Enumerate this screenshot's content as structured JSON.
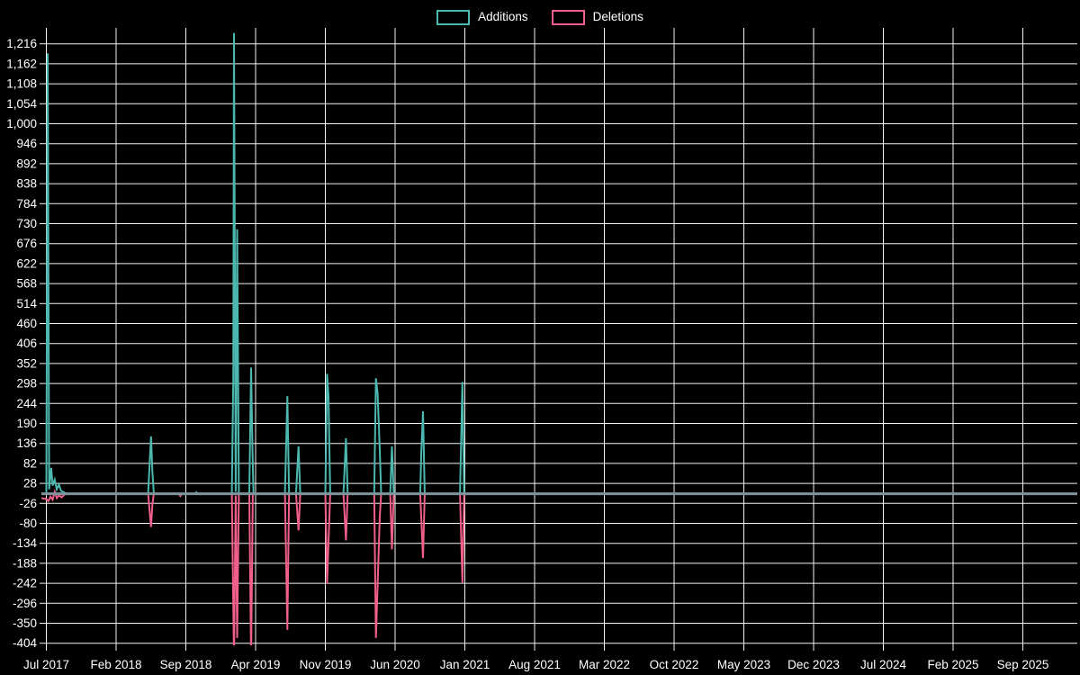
{
  "page": {
    "background_color": "#000000",
    "text_color": "#ffffff",
    "grid_color": "#f2f2f2",
    "zero_line_color": "#7f949c"
  },
  "legend": {
    "items": [
      {
        "label": "Additions",
        "color": "#4cb8af"
      },
      {
        "label": "Deletions",
        "color": "#f0608a"
      }
    ]
  },
  "chart_data": {
    "type": "line",
    "title": "",
    "xlabel": "",
    "ylabel": "",
    "legend_position": "top-center",
    "grid": true,
    "x_unit_note": "x values are in tick units: 0 = Jul 2017 tick, each tick = 7 months",
    "x_ticks": [
      "Jul 2017",
      "Feb 2018",
      "Sep 2018",
      "Apr 2019",
      "Nov 2019",
      "Jun 2020",
      "Jan 2021",
      "Aug 2021",
      "Mar 2022",
      "Oct 2022",
      "May 2023",
      "Dec 2023",
      "Jul 2024",
      "Feb 2025",
      "Sep 2025"
    ],
    "y_ticks": [
      "1,216",
      "1,162",
      "1,108",
      "1,054",
      "1,000",
      "946",
      "892",
      "838",
      "784",
      "730",
      "676",
      "622",
      "568",
      "514",
      "460",
      "406",
      "352",
      "298",
      "244",
      "190",
      "136",
      "82",
      "28",
      "-26",
      "-80",
      "-134",
      "-188",
      "-242",
      "-296",
      "-350",
      "-404"
    ],
    "ylim": [
      -410,
      1255
    ],
    "series": [
      {
        "name": "Additions",
        "color": "#4cb8af",
        "points": [
          [
            -0.07,
            0
          ],
          [
            0.0,
            0
          ],
          [
            0.02,
            1190
          ],
          [
            0.04,
            12
          ],
          [
            0.07,
            70
          ],
          [
            0.09,
            22
          ],
          [
            0.12,
            38
          ],
          [
            0.15,
            12
          ],
          [
            0.18,
            25
          ],
          [
            0.21,
            8
          ],
          [
            0.26,
            3
          ],
          [
            0.3,
            0
          ],
          [
            1.46,
            0
          ],
          [
            1.5,
            155
          ],
          [
            1.52,
            60
          ],
          [
            1.54,
            0
          ],
          [
            2.13,
            0
          ],
          [
            2.15,
            4
          ],
          [
            2.17,
            0
          ],
          [
            2.66,
            0
          ],
          [
            2.68,
            310
          ],
          [
            2.69,
            1245
          ],
          [
            2.715,
            5
          ],
          [
            2.735,
            715
          ],
          [
            2.76,
            0
          ],
          [
            2.91,
            0
          ],
          [
            2.935,
            341
          ],
          [
            2.955,
            120
          ],
          [
            2.97,
            0
          ],
          [
            3.42,
            0
          ],
          [
            3.455,
            264
          ],
          [
            3.48,
            0
          ],
          [
            3.58,
            0
          ],
          [
            3.615,
            128
          ],
          [
            3.64,
            0
          ],
          [
            4.0,
            0
          ],
          [
            4.025,
            324
          ],
          [
            4.045,
            264
          ],
          [
            4.07,
            0
          ],
          [
            4.26,
            0
          ],
          [
            4.295,
            150
          ],
          [
            4.32,
            0
          ],
          [
            4.7,
            0
          ],
          [
            4.725,
            312
          ],
          [
            4.75,
            270
          ],
          [
            4.78,
            116
          ],
          [
            4.8,
            0
          ],
          [
            4.93,
            0
          ],
          [
            4.955,
            128
          ],
          [
            4.98,
            0
          ],
          [
            5.36,
            0
          ],
          [
            5.375,
            111
          ],
          [
            5.4,
            223
          ],
          [
            5.425,
            0
          ],
          [
            5.93,
            0
          ],
          [
            5.945,
            123
          ],
          [
            5.965,
            302
          ],
          [
            5.99,
            0
          ],
          [
            14.77,
            0
          ]
        ]
      },
      {
        "name": "Deletions",
        "color": "#f0608a",
        "points": [
          [
            -0.07,
            -12
          ],
          [
            0.0,
            -14
          ],
          [
            0.03,
            -20
          ],
          [
            0.06,
            -8
          ],
          [
            0.09,
            -16
          ],
          [
            0.12,
            5
          ],
          [
            0.15,
            -12
          ],
          [
            0.18,
            -4
          ],
          [
            0.22,
            -10
          ],
          [
            0.26,
            -2
          ],
          [
            0.3,
            0
          ],
          [
            1.46,
            0
          ],
          [
            1.5,
            -90
          ],
          [
            1.52,
            -30
          ],
          [
            1.54,
            0
          ],
          [
            1.9,
            0
          ],
          [
            1.92,
            -6
          ],
          [
            1.94,
            0
          ],
          [
            2.66,
            0
          ],
          [
            2.69,
            -450
          ],
          [
            2.715,
            -5
          ],
          [
            2.735,
            -390
          ],
          [
            2.76,
            0
          ],
          [
            2.91,
            0
          ],
          [
            2.935,
            -450
          ],
          [
            2.96,
            0
          ],
          [
            3.42,
            0
          ],
          [
            3.455,
            -368
          ],
          [
            3.48,
            0
          ],
          [
            3.58,
            0
          ],
          [
            3.615,
            -99
          ],
          [
            3.64,
            0
          ],
          [
            4.0,
            0
          ],
          [
            4.025,
            -244
          ],
          [
            4.07,
            0
          ],
          [
            4.26,
            0
          ],
          [
            4.295,
            -126
          ],
          [
            4.32,
            0
          ],
          [
            4.7,
            0
          ],
          [
            4.725,
            -390
          ],
          [
            4.78,
            -60
          ],
          [
            4.8,
            0
          ],
          [
            4.93,
            0
          ],
          [
            4.955,
            -150
          ],
          [
            4.98,
            0
          ],
          [
            5.36,
            0
          ],
          [
            5.4,
            -174
          ],
          [
            5.425,
            0
          ],
          [
            5.93,
            0
          ],
          [
            5.965,
            -240
          ],
          [
            5.99,
            0
          ],
          [
            14.77,
            0
          ]
        ]
      }
    ]
  }
}
